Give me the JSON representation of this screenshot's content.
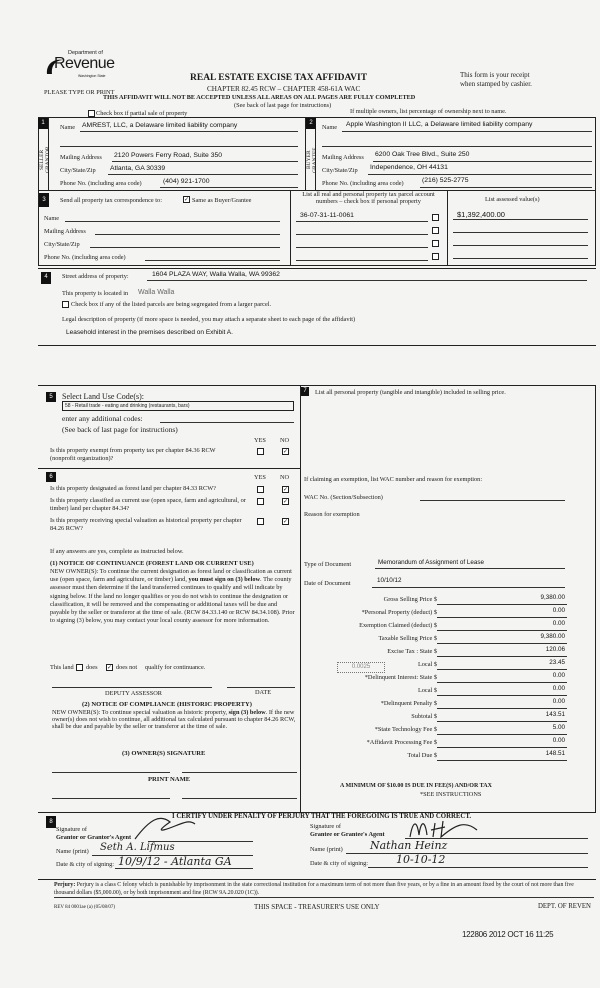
{
  "header": {
    "logo_text_top": "Department of",
    "logo_text_main": "Revenue",
    "logo_text_sub": "Washington State",
    "please_type": "PLEASE TYPE OR PRINT",
    "title": "REAL ESTATE EXCISE TAX AFFIDAVIT",
    "chapter": "CHAPTER 82.45 RCW – CHAPTER 458-61A WAC",
    "receipt_line1": "This form is your receipt",
    "receipt_line2": "when stamped by cashier.",
    "warning": "THIS AFFIDAVIT WILL NOT BE ACCEPTED UNLESS ALL AREAS ON ALL PAGES ARE FULLY COMPLETED",
    "see_back": "(See back of last page for instructions)",
    "partial_sale_label": "Check box if partial sale of property",
    "partial_sale_checked": false,
    "multiple_owners": "If multiple owners, list percentage of ownership next to name."
  },
  "seller": {
    "number": "1",
    "side_label": "SELLER GRANTOR",
    "name_label": "Name",
    "name": "AMREST, LLC, a Delaware limited liability company",
    "mailing_label": "Mailing Address",
    "mailing": "2120 Powers Ferry Road, Suite 350",
    "city_label": "City/State/Zip",
    "city": "Atlanta, GA 30339",
    "phone_label": "Phone No. (including area code)",
    "phone": "(404) 921-1700"
  },
  "buyer": {
    "number": "2",
    "side_label": "BUYER GRANTEE",
    "name_label": "Name",
    "name": "Apple Washington II LLC, a Delaware limited liability company",
    "mailing_label": "Mailing Address",
    "mailing": "6200 Oak Tree Blvd., Suite 250",
    "city_label": "City/State/Zip",
    "city": "Independence, OH 44131",
    "phone_label": "Phone No. (including area code)",
    "phone": "(216) 525-2775"
  },
  "correspondence": {
    "number": "3",
    "label": "Send all property tax correspondence to:",
    "same_as_label": "Same as Buyer/Grantee",
    "same_as_checked": true,
    "name_label": "Name",
    "mailing_label": "Mailing Address",
    "city_label": "City/State/Zip",
    "phone_label": "Phone No. (including area code)"
  },
  "parcels": {
    "header": "List all real and personal property tax parcel account numbers – check box if personal property",
    "assessed_header": "List assessed value(s)",
    "rows": [
      {
        "parcel": "36-07-31-11-0061",
        "personal": false,
        "assessed": "$1,392,400.00"
      },
      {
        "parcel": "",
        "personal": false,
        "assessed": ""
      },
      {
        "parcel": "",
        "personal": false,
        "assessed": ""
      },
      {
        "parcel": "",
        "personal": false,
        "assessed": ""
      }
    ]
  },
  "property": {
    "number": "4",
    "street_label": "Street address of property:",
    "street": "1604 PLAZA WAY, Walla Walla, WA  99362",
    "located_label": "This property is located in",
    "located": "Walla Walla",
    "segregated_label": "Check box if any of the listed parcels are being segregated from a larger parcel.",
    "segregated_checked": false,
    "legal_label": "Legal description of property (if more space is needed, you may attach a separate sheet to each page of the affidavit)",
    "legal": "Leasehold interest in the premises described on Exhibit A."
  },
  "land_use": {
    "number": "5",
    "label": "Select Land Use Code(s):",
    "code": "58 - Retail trade - eating and drinking (restaurants, bars)",
    "additional_label": "enter any additional codes:",
    "see_back": "(See back of last page for instructions)",
    "yes": "YES",
    "no": "NO",
    "exempt_question": "Is this property exempt from property tax per chapter 84.36 RCW (nonprofit organization)?",
    "exempt_answer": "NO"
  },
  "section6": {
    "number": "6",
    "yes": "YES",
    "no": "NO",
    "questions": [
      {
        "text": "Is this property designated as forest land per chapter 84.33 RCW?",
        "answer": "NO"
      },
      {
        "text": "Is this property classified as current use (open space, farm and agricultural, or timber) land per chapter 84.34?",
        "answer": "NO"
      },
      {
        "text": "Is this property receiving special valuation as historical property per chapter 84.26 RCW?",
        "answer": "NO"
      }
    ],
    "if_yes": "If any answers are yes, complete as instructed below.",
    "notice1_title": "(1) NOTICE OF CONTINUANCE  (FOREST LAND OR CURRENT USE)",
    "notice1_text_a": "NEW OWNER(S): To continue the current designation as forest land or classification as current use (open space, farm and agriculture, or timber) land, ",
    "notice1_bold": "you must sign on (3) below",
    "notice1_text_b": ". The county assessor must then determine if the land transferred continues to qualify and will indicate by signing below. If the land no longer qualifies or you do not wish to continue the designation or classification, it will be removed and the compensating or additional taxes will be due and payable by the seller or transferor at the time of sale. (RCW 84.33.140 or RCW 84.34.108). Prior to signing (3) below, you may contact your local county assessor for more information.",
    "this_land": "This land",
    "does": "does",
    "does_not": "does not",
    "qualify": "qualify for continuance.",
    "continuance": "does not",
    "deputy_assessor": "DEPUTY ASSESSOR",
    "date": "DATE",
    "notice2_title": "(2) NOTICE OF COMPLIANCE (HISTORIC PROPERTY)",
    "notice2_text_a": "NEW OWNER(S): To continue special valuation as historic property, ",
    "notice2_bold": "sign (3) below",
    "notice2_text_b": ". If the new owner(s) does not wish to continue, all additional tax calculated pursuant to chapter 84.26 RCW, shall be due and payable by the seller or transferor at the time of sale.",
    "owner_signature": "(3)  OWNER(S) SIGNATURE",
    "print_name": "PRINT NAME"
  },
  "section7": {
    "number": "7",
    "label": "List all  personal property (tangible and intangible) included in selling price.",
    "exemption_label": "If claiming an exemption, list WAC number and reason for exemption:",
    "wac_label": "WAC No. (Section/Subsection)",
    "reason_label": "Reason for exemption",
    "doc_type_label": "Type of Document",
    "doc_type": "Memorandum of Assignment of Lease",
    "doc_date_label": "Date of Document",
    "doc_date": "10/10/12",
    "local_rate": "0.0025",
    "tax_lines": [
      {
        "label": "Gross Selling Price  $",
        "value": "9,380.00"
      },
      {
        "label": "*Personal Property (deduct)  $",
        "value": "0.00"
      },
      {
        "label": "Exemption Claimed (deduct)  $",
        "value": "0.00"
      },
      {
        "label": "Taxable Selling Price  $",
        "value": "9,380.00"
      },
      {
        "label": "Excise Tax : State  $",
        "value": "120.06"
      },
      {
        "label": "Local  $",
        "value": "23.45"
      },
      {
        "label": "*Delinquent Interest: State  $",
        "value": "0.00"
      },
      {
        "label": "Local  $",
        "value": "0.00"
      },
      {
        "label": "*Delinquent Penalty  $",
        "value": "0.00"
      },
      {
        "label": "Subtotal  $",
        "value": "143.51"
      },
      {
        "label": "*State Technology Fee  $",
        "value": "5.00"
      },
      {
        "label": "*Affidavit Processing Fee  $",
        "value": "0.00"
      },
      {
        "label": "Total Due  $",
        "value": "148.51"
      }
    ],
    "minimum": "A MINIMUM OF $10.00 IS DUE IN FEE(S) AND/OR TAX",
    "see_instructions": "*SEE INSTRUCTIONS"
  },
  "section8": {
    "number": "8",
    "certify": "I CERTIFY UNDER PENALTY OF PERJURY THAT THE FOREGOING IS TRUE AND CORRECT.",
    "grantor_sig_label1": "Signature of",
    "grantor_sig_label2": "Grantor or Grantor's Agent",
    "grantor_name_label": "Name (print)",
    "grantor_name": "Seth A. Lifmus",
    "grantor_date_label": "Date & city of signing:",
    "grantor_date": "10/9/12 - Atlanta GA",
    "grantee_sig_label1": "Signature of",
    "grantee_sig_label2": "Grantee or Grantee's Agent",
    "grantee_name_label": "Name (print)",
    "grantee_name": "Nathan Heinz",
    "grantee_date_label": "Date & city of signing:",
    "grantee_date": "10-10-12"
  },
  "footer": {
    "perjury_bold": "Perjury:",
    "perjury_text": " Perjury is a class C felony which is punishable by imprisonment in the state correctional institution for a maximum term of not more than five years, or by a fine in an amount fixed by the court of not more than five thousand dollars ($5,000.00), or by both imprisonment and fine (RCW 9A.20.020 (1C)).",
    "form_number": "REV 84 0001ae (a) (05/08/07)",
    "treasurer": "THIS SPACE - TREASURER'S USE ONLY",
    "dept": "DEPT. OF REVEN",
    "stamp": "122806 2012 OCT 16 11:25"
  }
}
